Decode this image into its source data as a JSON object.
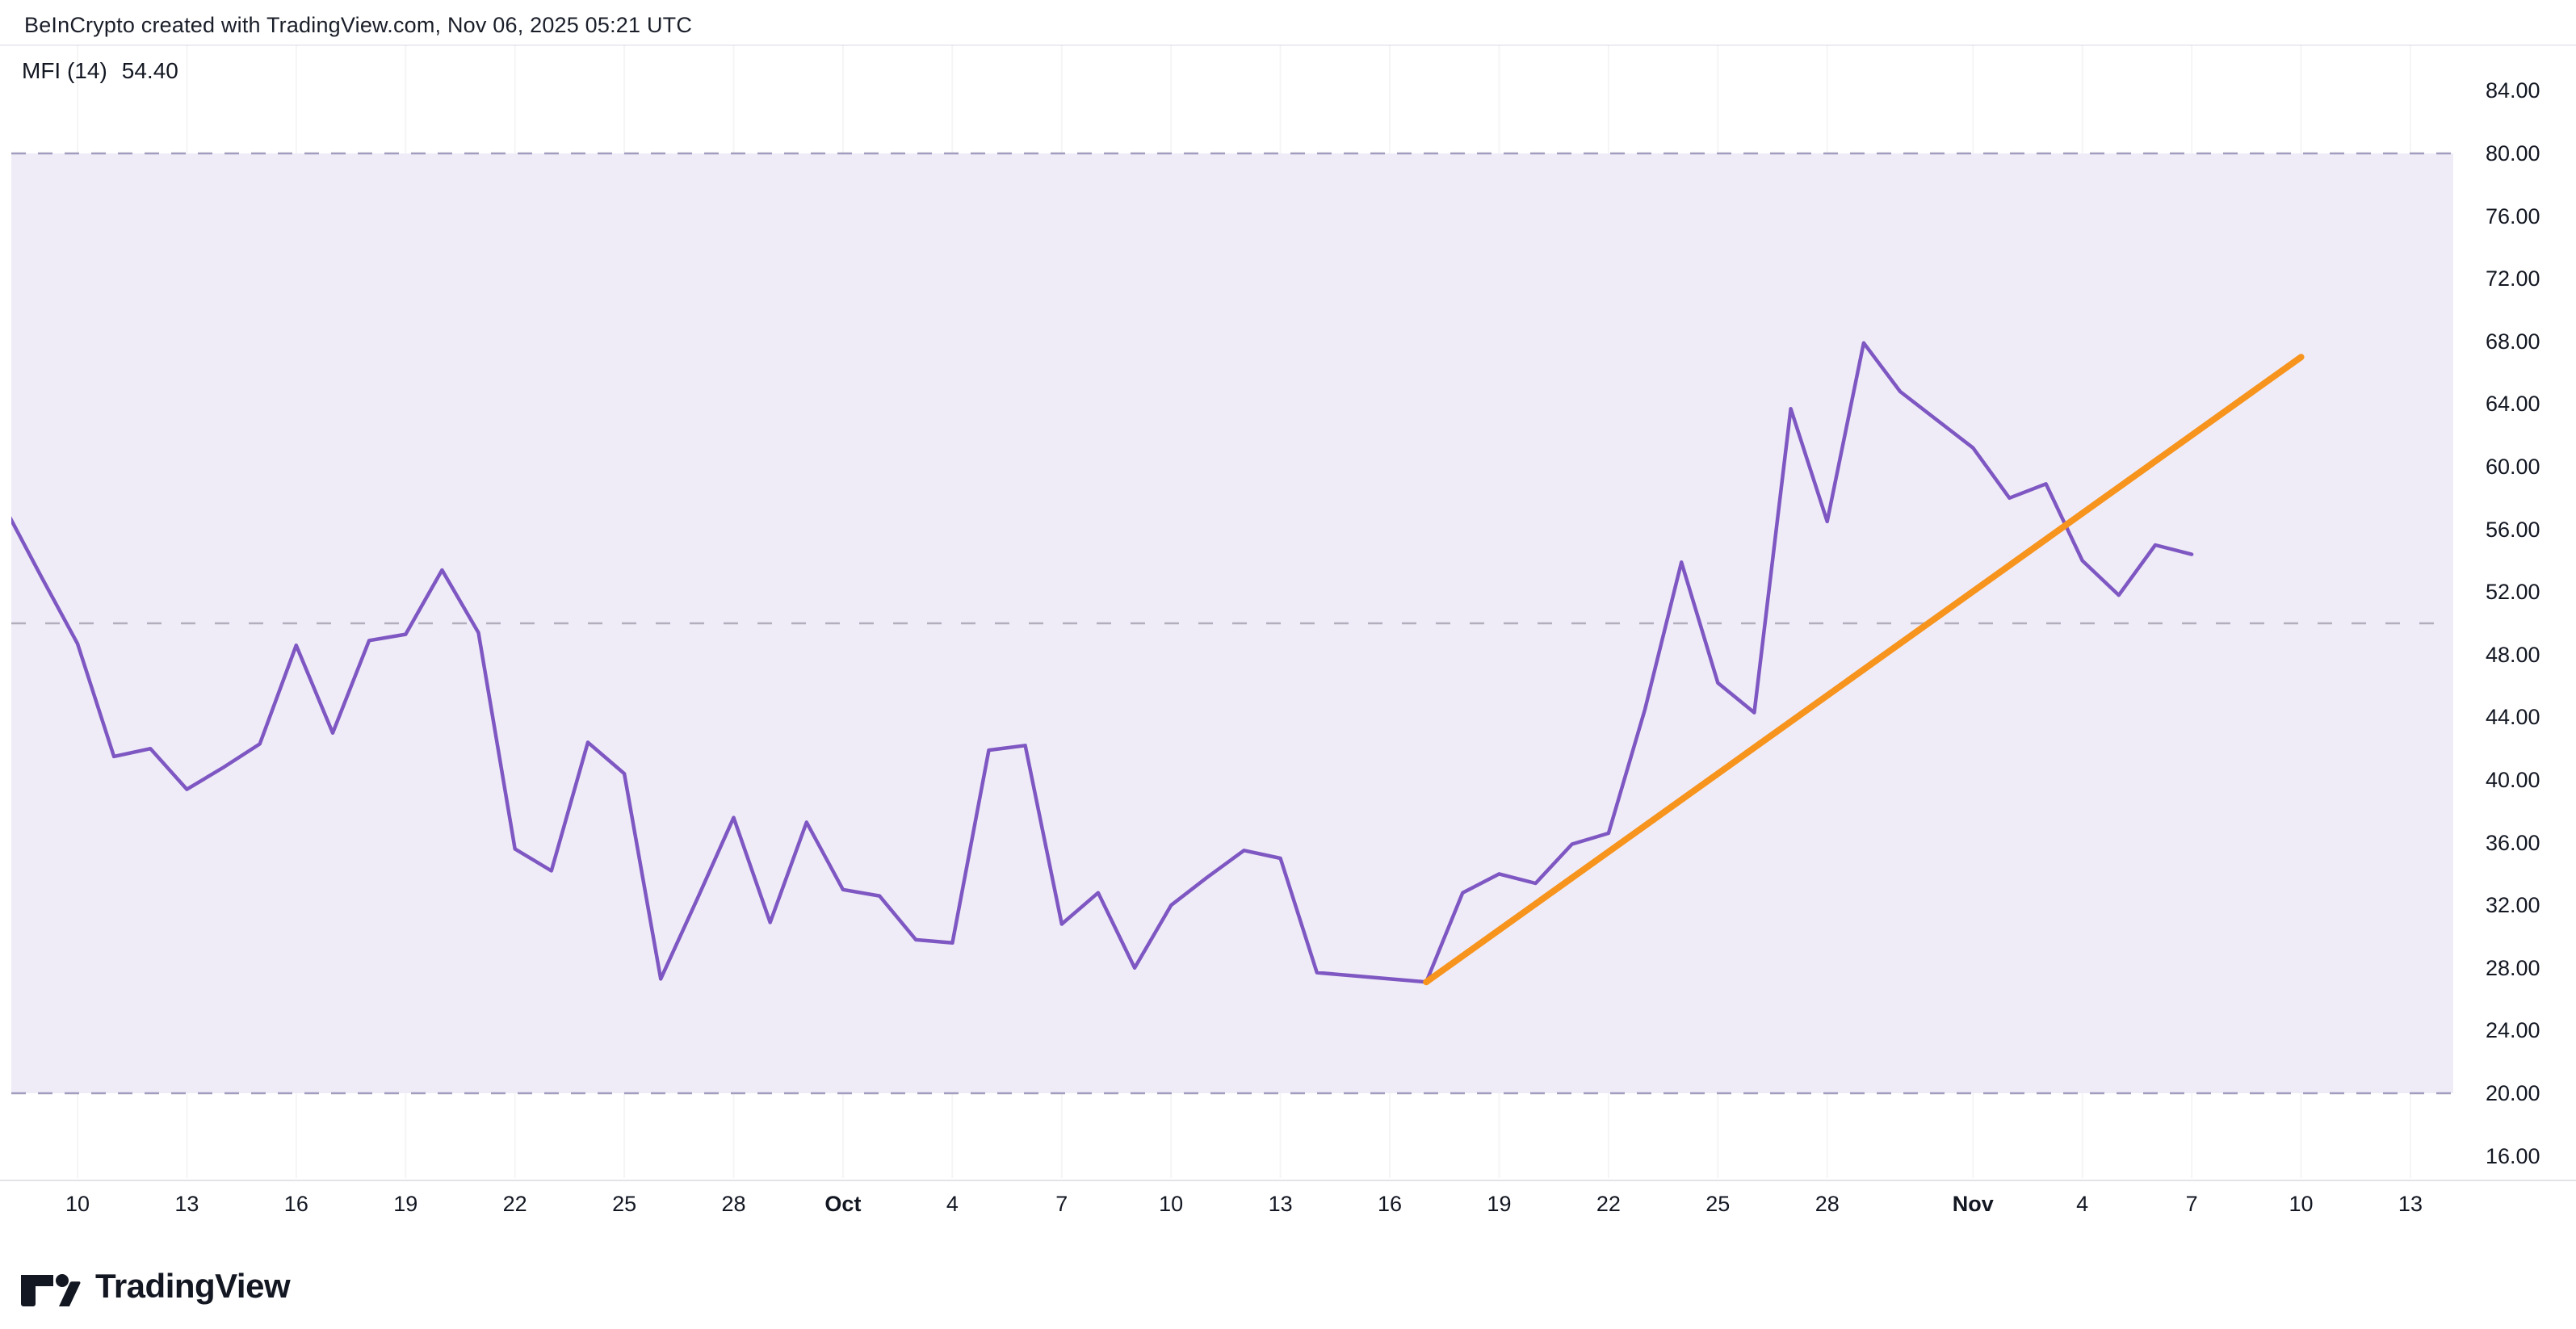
{
  "header": {
    "title": "BeInCrypto created with TradingView.com, Nov 06, 2025 05:21 UTC"
  },
  "indicator": {
    "name": "MFI (14)",
    "value": "54.40"
  },
  "logo": {
    "text": "TradingView"
  },
  "colors": {
    "mfi_line": "#7E57C2",
    "trend_line": "#F7941D",
    "band_fill": "#EFECF8",
    "band_dash": "#A29DBE",
    "mid_dash": "#B2AEBC",
    "axis_text": "#131722",
    "grid_line": "rgba(19,23,34,0.045)"
  },
  "y_axis": {
    "labels": [
      "84.00",
      "80.00",
      "76.00",
      "72.00",
      "68.00",
      "64.00",
      "60.00",
      "56.00",
      "52.00",
      "48.00",
      "44.00",
      "40.00",
      "36.00",
      "32.00",
      "28.00",
      "24.00",
      "20.00",
      "16.00"
    ]
  },
  "x_axis": {
    "ticks": [
      {
        "label": "10",
        "date": "Sep 10",
        "bold": false
      },
      {
        "label": "13",
        "date": "Sep 13",
        "bold": false
      },
      {
        "label": "16",
        "date": "Sep 16",
        "bold": false
      },
      {
        "label": "19",
        "date": "Sep 19",
        "bold": false
      },
      {
        "label": "22",
        "date": "Sep 22",
        "bold": false
      },
      {
        "label": "25",
        "date": "Sep 25",
        "bold": false
      },
      {
        "label": "28",
        "date": "Sep 28",
        "bold": false
      },
      {
        "label": "Oct",
        "date": "Oct 1",
        "bold": true
      },
      {
        "label": "4",
        "date": "Oct 4",
        "bold": false
      },
      {
        "label": "7",
        "date": "Oct 7",
        "bold": false
      },
      {
        "label": "10",
        "date": "Oct 10",
        "bold": false
      },
      {
        "label": "13",
        "date": "Oct 13",
        "bold": false
      },
      {
        "label": "16",
        "date": "Oct 16",
        "bold": false
      },
      {
        "label": "19",
        "date": "Oct 19",
        "bold": false
      },
      {
        "label": "22",
        "date": "Oct 22",
        "bold": false
      },
      {
        "label": "25",
        "date": "Oct 25",
        "bold": false
      },
      {
        "label": "28",
        "date": "Oct 28",
        "bold": false
      },
      {
        "label": "Nov",
        "date": "Nov 1",
        "bold": true
      },
      {
        "label": "4",
        "date": "Nov 4",
        "bold": false
      },
      {
        "label": "7",
        "date": "Nov 7",
        "bold": false
      },
      {
        "label": "10",
        "date": "Nov 10",
        "bold": false
      },
      {
        "label": "13",
        "date": "Nov 13",
        "bold": false
      }
    ]
  },
  "chart_data": {
    "type": "line",
    "title": "MFI (14)",
    "ylabel": "MFI",
    "ylim": [
      13,
      87
    ],
    "grid": "horizontal-dashed-levels",
    "legend_position": "none",
    "levels": {
      "overbought": 80,
      "middle": 50,
      "oversold": 20
    },
    "series": [
      {
        "name": "MFI",
        "points": [
          {
            "date": "Sep 8",
            "value": 57.4
          },
          {
            "date": "Sep 9",
            "value": 53.0
          },
          {
            "date": "Sep 10",
            "value": 48.7
          },
          {
            "date": "Sep 11",
            "value": 41.5
          },
          {
            "date": "Sep 12",
            "value": 42.0
          },
          {
            "date": "Sep 13",
            "value": 39.4
          },
          {
            "date": "Sep 14",
            "value": 40.8
          },
          {
            "date": "Sep 15",
            "value": 42.3
          },
          {
            "date": "Sep 16",
            "value": 48.6
          },
          {
            "date": "Sep 17",
            "value": 43.0
          },
          {
            "date": "Sep 18",
            "value": 48.9
          },
          {
            "date": "Sep 19",
            "value": 49.3
          },
          {
            "date": "Sep 20",
            "value": 53.4
          },
          {
            "date": "Sep 21",
            "value": 49.4
          },
          {
            "date": "Sep 22",
            "value": 35.6
          },
          {
            "date": "Sep 23",
            "value": 34.2
          },
          {
            "date": "Sep 24",
            "value": 42.4
          },
          {
            "date": "Sep 25",
            "value": 40.4
          },
          {
            "date": "Sep 26",
            "value": 27.3
          },
          {
            "date": "Sep 27",
            "value": 32.4
          },
          {
            "date": "Sep 28",
            "value": 37.6
          },
          {
            "date": "Sep 29",
            "value": 30.9
          },
          {
            "date": "Sep 30",
            "value": 37.3
          },
          {
            "date": "Oct 1",
            "value": 33.0
          },
          {
            "date": "Oct 2",
            "value": 32.6
          },
          {
            "date": "Oct 3",
            "value": 29.8
          },
          {
            "date": "Oct 4",
            "value": 29.6
          },
          {
            "date": "Oct 5",
            "value": 41.9
          },
          {
            "date": "Oct 6",
            "value": 42.2
          },
          {
            "date": "Oct 7",
            "value": 30.8
          },
          {
            "date": "Oct 8",
            "value": 32.8
          },
          {
            "date": "Oct 9",
            "value": 28.0
          },
          {
            "date": "Oct 10",
            "value": 32.0
          },
          {
            "date": "Oct 11",
            "value": 33.8
          },
          {
            "date": "Oct 12",
            "value": 35.5
          },
          {
            "date": "Oct 13",
            "value": 35.0
          },
          {
            "date": "Oct 14",
            "value": 27.7
          },
          {
            "date": "Oct 15",
            "value": 27.5
          },
          {
            "date": "Oct 16",
            "value": 27.3
          },
          {
            "date": "Oct 17",
            "value": 27.1
          },
          {
            "date": "Oct 18",
            "value": 32.8
          },
          {
            "date": "Oct 19",
            "value": 34.0
          },
          {
            "date": "Oct 20",
            "value": 33.4
          },
          {
            "date": "Oct 21",
            "value": 35.9
          },
          {
            "date": "Oct 22",
            "value": 36.6
          },
          {
            "date": "Oct 23",
            "value": 44.5
          },
          {
            "date": "Oct 24",
            "value": 53.9
          },
          {
            "date": "Oct 25",
            "value": 46.2
          },
          {
            "date": "Oct 26",
            "value": 44.3
          },
          {
            "date": "Oct 27",
            "value": 63.7
          },
          {
            "date": "Oct 28",
            "value": 56.5
          },
          {
            "date": "Oct 29",
            "value": 67.9
          },
          {
            "date": "Oct 30",
            "value": 64.8
          },
          {
            "date": "Oct 31",
            "value": 63.0
          },
          {
            "date": "Nov 1",
            "value": 61.2
          },
          {
            "date": "Nov 2",
            "value": 58.0
          },
          {
            "date": "Nov 3",
            "value": 58.9
          },
          {
            "date": "Nov 4",
            "value": 54.0
          },
          {
            "date": "Nov 5",
            "value": 51.8
          },
          {
            "date": "Nov 6",
            "value": 55.0
          },
          {
            "date": "Nov 7",
            "value": 54.4
          }
        ]
      },
      {
        "name": "trendline",
        "points": [
          {
            "date": "Oct 17",
            "value": 27.1
          },
          {
            "date": "Nov 10",
            "value": 67.0
          }
        ]
      }
    ]
  }
}
